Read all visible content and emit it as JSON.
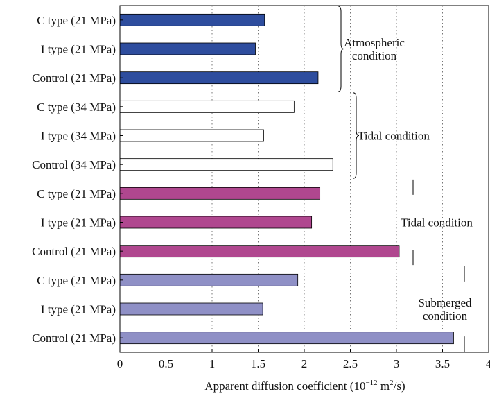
{
  "chart_data": {
    "type": "bar",
    "orientation": "horizontal",
    "xlabel": "Apparent diffusion coefficient",
    "xunit_base": "(10",
    "xunit_exp": "−12",
    "xunit_mid": " m",
    "xunit_exp2": "2",
    "xunit_tail": "/s)",
    "xlim": [
      0,
      4
    ],
    "xticks": [
      "0",
      "0.5",
      "1",
      "1.5",
      "2",
      "2.5",
      "3",
      "3.5",
      "4"
    ],
    "grid": "vertical dotted",
    "categories": [
      "C type (21 MPa)",
      "I type (21 MPa)",
      "Control (21 MPa)",
      "C type (34 MPa)",
      "I type (34 MPa)",
      "Control (34 MPa)",
      "C type (21 MPa)",
      "I type (21 MPa)",
      "Control (21 MPa)",
      "C type (21 MPa)",
      "I type (21 MPa)",
      "Control (21 MPa)"
    ],
    "values": [
      1.57,
      1.47,
      2.15,
      1.89,
      1.56,
      2.31,
      2.17,
      2.08,
      3.03,
      1.93,
      1.55,
      3.62
    ],
    "colors": [
      "#2e4d9e",
      "#2e4d9e",
      "#2e4d9e",
      "#ffffff",
      "#ffffff",
      "#ffffff",
      "#b0478f",
      "#b0478f",
      "#b0478f",
      "#8f90c6",
      "#8f90c6",
      "#8f90c6"
    ],
    "groups": [
      {
        "lines": [
          "Atmospheric",
          "condition"
        ]
      },
      {
        "lines": [
          "Tidal condition"
        ]
      },
      {
        "lines": [
          "Tidal condition"
        ]
      },
      {
        "lines": [
          "Submerged",
          "condition"
        ]
      }
    ]
  }
}
